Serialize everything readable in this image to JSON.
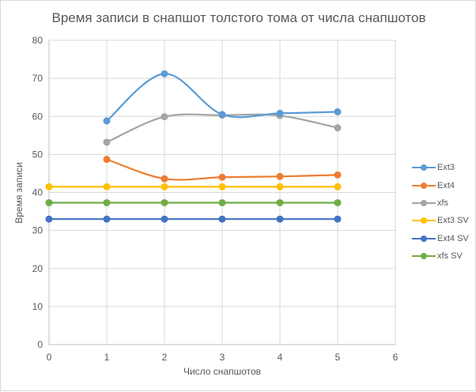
{
  "chart_data": {
    "type": "line",
    "title": "Время записи в снапшот толстого тома от числа снапшотов",
    "xlabel": "Число снапшотов",
    "ylabel": "Время записи",
    "xlim": [
      0,
      6
    ],
    "ylim": [
      0,
      80
    ],
    "x_ticks": [
      "0",
      "1",
      "2",
      "3",
      "4",
      "5",
      "6"
    ],
    "y_ticks": [
      "0",
      "10",
      "20",
      "30",
      "40",
      "50",
      "60",
      "70",
      "80"
    ],
    "grid": true,
    "legend_position": "right",
    "series": [
      {
        "name": "Ext3",
        "color": "#5b9bd5",
        "smooth": true,
        "x": [
          1,
          2,
          3,
          4,
          5
        ],
        "values": [
          58.8,
          71.2,
          60.5,
          60.8,
          61.2
        ]
      },
      {
        "name": "Ext4",
        "color": "#ed7d31",
        "smooth": true,
        "x": [
          1,
          2,
          3,
          4,
          5
        ],
        "values": [
          48.7,
          43.6,
          44.0,
          44.2,
          44.6
        ]
      },
      {
        "name": "xfs",
        "color": "#a5a5a5",
        "smooth": true,
        "x": [
          1,
          2,
          3,
          4,
          5
        ],
        "values": [
          53.2,
          59.9,
          60.3,
          60.2,
          57.0
        ]
      },
      {
        "name": "Ext3 SV",
        "color": "#ffc000",
        "smooth": false,
        "x": [
          0,
          1,
          2,
          3,
          4,
          5
        ],
        "values": [
          41.5,
          41.5,
          41.5,
          41.5,
          41.5,
          41.5
        ]
      },
      {
        "name": "Ext4 SV",
        "color": "#4472c4",
        "smooth": false,
        "x": [
          0,
          1,
          2,
          3,
          4,
          5
        ],
        "values": [
          33.0,
          33.0,
          33.0,
          33.0,
          33.0,
          33.0
        ]
      },
      {
        "name": "xfs SV",
        "color": "#70ad47",
        "smooth": false,
        "x": [
          0,
          1,
          2,
          3,
          4,
          5
        ],
        "values": [
          37.3,
          37.3,
          37.3,
          37.3,
          37.3,
          37.3
        ]
      }
    ]
  }
}
